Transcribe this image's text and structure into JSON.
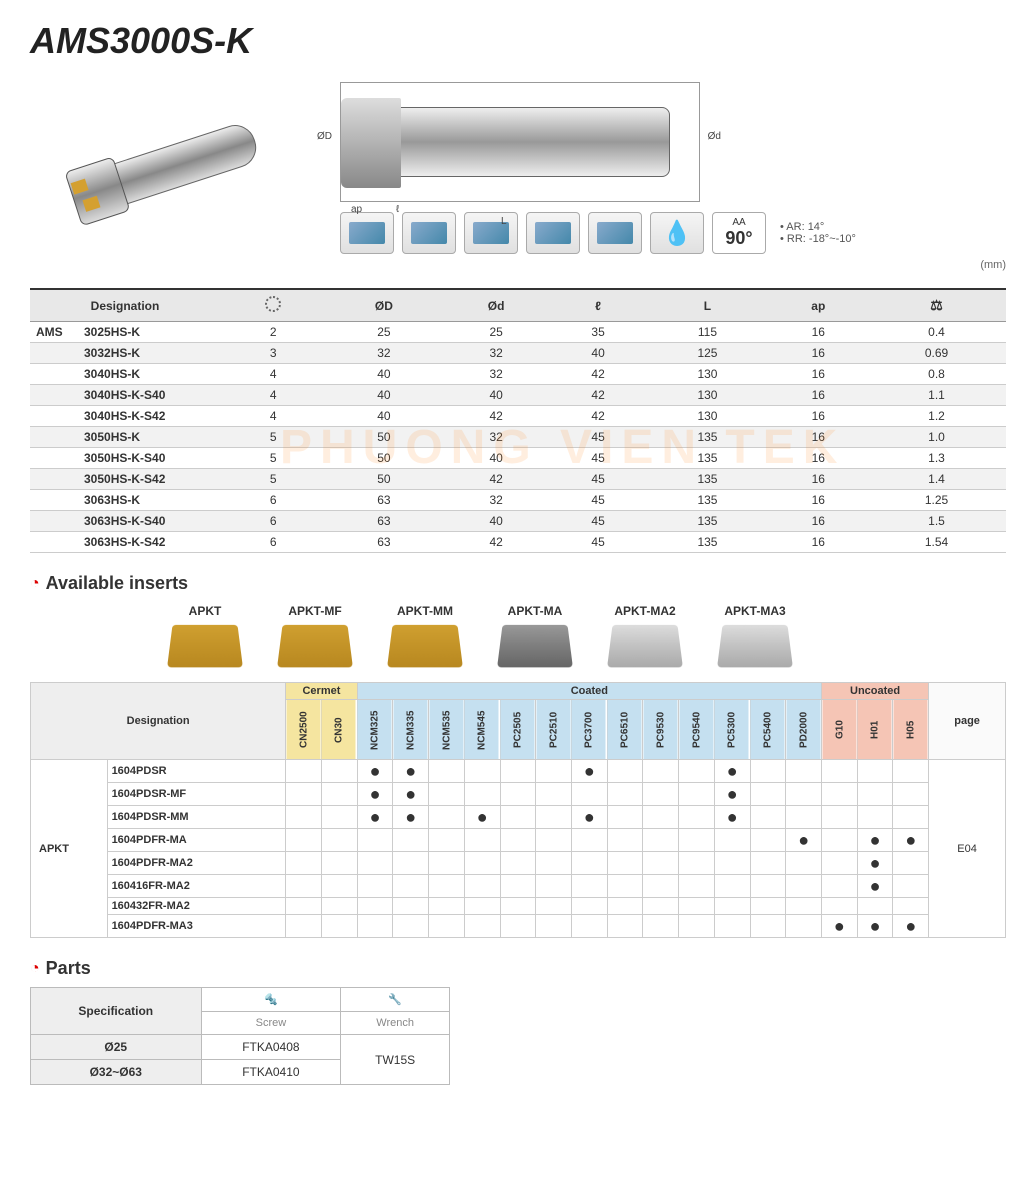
{
  "title": "AMS3000S-K",
  "angle_box": {
    "label": "AA",
    "value": "90°"
  },
  "specs": {
    "ar": "• AR: 14°",
    "rr": "• RR: -18°~-10°"
  },
  "unit": "(mm)",
  "diagram_labels": {
    "OD": "ØD",
    "Od": "Ød",
    "ap": "ap",
    "l": "ℓ",
    "L": "L"
  },
  "main_table": {
    "headers": [
      "Designation",
      "",
      "ØD",
      "Ød",
      "ℓ",
      "L",
      "ap",
      ""
    ],
    "prefix": "AMS",
    "rows": [
      {
        "d": "3025HS-K",
        "n": "2",
        "OD": "25",
        "od": "25",
        "l": "35",
        "L": "115",
        "ap": "16",
        "kg": "0.4"
      },
      {
        "d": "3032HS-K",
        "n": "3",
        "OD": "32",
        "od": "32",
        "l": "40",
        "L": "125",
        "ap": "16",
        "kg": "0.69"
      },
      {
        "d": "3040HS-K",
        "n": "4",
        "OD": "40",
        "od": "32",
        "l": "42",
        "L": "130",
        "ap": "16",
        "kg": "0.8"
      },
      {
        "d": "3040HS-K-S40",
        "n": "4",
        "OD": "40",
        "od": "40",
        "l": "42",
        "L": "130",
        "ap": "16",
        "kg": "1.1"
      },
      {
        "d": "3040HS-K-S42",
        "n": "4",
        "OD": "40",
        "od": "42",
        "l": "42",
        "L": "130",
        "ap": "16",
        "kg": "1.2"
      },
      {
        "d": "3050HS-K",
        "n": "5",
        "OD": "50",
        "od": "32",
        "l": "45",
        "L": "135",
        "ap": "16",
        "kg": "1.0"
      },
      {
        "d": "3050HS-K-S40",
        "n": "5",
        "OD": "50",
        "od": "40",
        "l": "45",
        "L": "135",
        "ap": "16",
        "kg": "1.3"
      },
      {
        "d": "3050HS-K-S42",
        "n": "5",
        "OD": "50",
        "od": "42",
        "l": "45",
        "L": "135",
        "ap": "16",
        "kg": "1.4"
      },
      {
        "d": "3063HS-K",
        "n": "6",
        "OD": "63",
        "od": "32",
        "l": "45",
        "L": "135",
        "ap": "16",
        "kg": "1.25"
      },
      {
        "d": "3063HS-K-S40",
        "n": "6",
        "OD": "63",
        "od": "40",
        "l": "45",
        "L": "135",
        "ap": "16",
        "kg": "1.5"
      },
      {
        "d": "3063HS-K-S42",
        "n": "6",
        "OD": "63",
        "od": "42",
        "l": "45",
        "L": "135",
        "ap": "16",
        "kg": "1.54"
      }
    ]
  },
  "sections": {
    "inserts": "Available inserts",
    "parts": "Parts"
  },
  "insert_types": [
    "APKT",
    "APKT-MF",
    "APKT-MM",
    "APKT-MA",
    "APKT-MA2",
    "APKT-MA3"
  ],
  "avail": {
    "designation_h": "Designation",
    "page_h": "page",
    "page_val": "E04",
    "groups": {
      "cermet": "Cermet",
      "coated": "Coated",
      "uncoated": "Uncoated"
    },
    "grades_cermet": [
      "CN2500",
      "CN30"
    ],
    "grades_coated": [
      "NCM325",
      "NCM335",
      "NCM535",
      "NCM545",
      "PC2505",
      "PC2510",
      "PC3700",
      "PC6510",
      "PC9530",
      "PC9540",
      "PC5300",
      "PC5400",
      "PD2000"
    ],
    "grades_uncoated": [
      "G10",
      "H01",
      "H05"
    ],
    "prefix": "APKT",
    "rows": [
      {
        "d": "1604PDSR",
        "dots": {
          "NCM325": 1,
          "NCM335": 1,
          "PC3700": 1,
          "PC5300": 1
        }
      },
      {
        "d": "1604PDSR-MF",
        "dots": {
          "NCM325": 1,
          "NCM335": 1,
          "PC5300": 1
        }
      },
      {
        "d": "1604PDSR-MM",
        "dots": {
          "NCM325": 1,
          "NCM335": 1,
          "NCM545": 1,
          "PC3700": 1,
          "PC5300": 1
        }
      },
      {
        "d": "1604PDFR-MA",
        "dots": {
          "PD2000": 1,
          "H01": 1,
          "H05": 1
        }
      },
      {
        "d": "1604PDFR-MA2",
        "dots": {
          "H01": 1
        }
      },
      {
        "d": "160416FR-MA2",
        "dots": {
          "H01": 1
        }
      },
      {
        "d": "160432FR-MA2",
        "dots": {}
      },
      {
        "d": "1604PDFR-MA3",
        "dots": {
          "G10": 1,
          "H01": 1,
          "H05": 1
        }
      }
    ]
  },
  "parts": {
    "spec_h": "Specification",
    "cols": [
      "Screw",
      "Wrench"
    ],
    "rows": [
      {
        "spec": "Ø25",
        "screw": "FTKA0408",
        "wrench": "TW15S"
      },
      {
        "spec": "Ø32~Ø63",
        "screw": "FTKA0410",
        "wrench": ""
      }
    ]
  },
  "watermark": "PHUONG VIEN TEK"
}
